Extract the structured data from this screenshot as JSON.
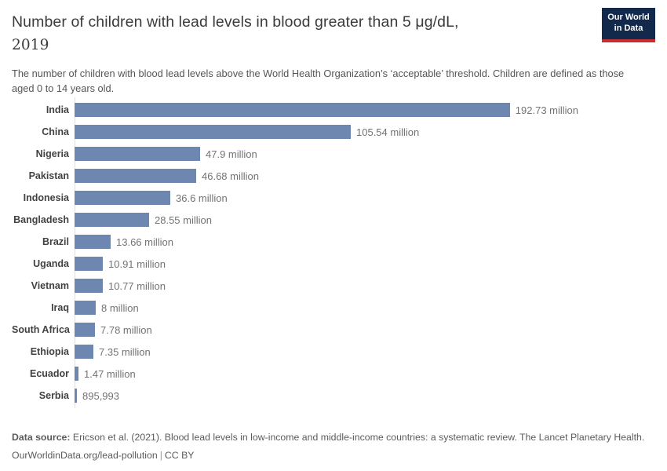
{
  "header": {
    "title_line1": "Number of children with lead levels in blood greater than 5 μg/dL,",
    "title_line2": "2019",
    "subtitle": "The number of children with blood lead levels above the World Health Organization’s ‘acceptable’ threshold. Children are defined as those aged 0 to 14 years old."
  },
  "logo": {
    "line1": "Our World",
    "line2": "in Data",
    "bg_color": "#12294b",
    "accent_color": "#c82d32"
  },
  "chart_data": {
    "type": "bar",
    "orientation": "horizontal",
    "title": "Number of children with lead levels in blood greater than 5 μg/dL, 2019",
    "xlabel": "",
    "ylabel": "",
    "xlim": [
      0,
      192.73
    ],
    "unit": "million",
    "grid": false,
    "bar_color": "#6d87b0",
    "categories": [
      "India",
      "China",
      "Nigeria",
      "Pakistan",
      "Indonesia",
      "Bangladesh",
      "Brazil",
      "Uganda",
      "Vietnam",
      "Iraq",
      "South Africa",
      "Ethiopia",
      "Ecuador",
      "Serbia"
    ],
    "values": [
      192.73,
      105.54,
      47.9,
      46.68,
      36.6,
      28.55,
      13.66,
      10.91,
      10.77,
      8,
      7.78,
      7.35,
      1.47,
      0.895993
    ],
    "value_labels": [
      "192.73 million",
      "105.54 million",
      "47.9 million",
      "46.68 million",
      "36.6 million",
      "28.55 million",
      "13.66 million",
      "10.91 million",
      "10.77 million",
      "8 million",
      "7.78 million",
      "7.35 million",
      "1.47 million",
      "895,993"
    ]
  },
  "footer": {
    "source_label": "Data source:",
    "source_text": "Ericson et al. (2021). Blood lead levels in low-income and middle-income countries: a systematic review. The Lancet Planetary Health.",
    "url": "OurWorldinData.org/lead-pollution",
    "separator": "|",
    "license": "CC BY"
  }
}
